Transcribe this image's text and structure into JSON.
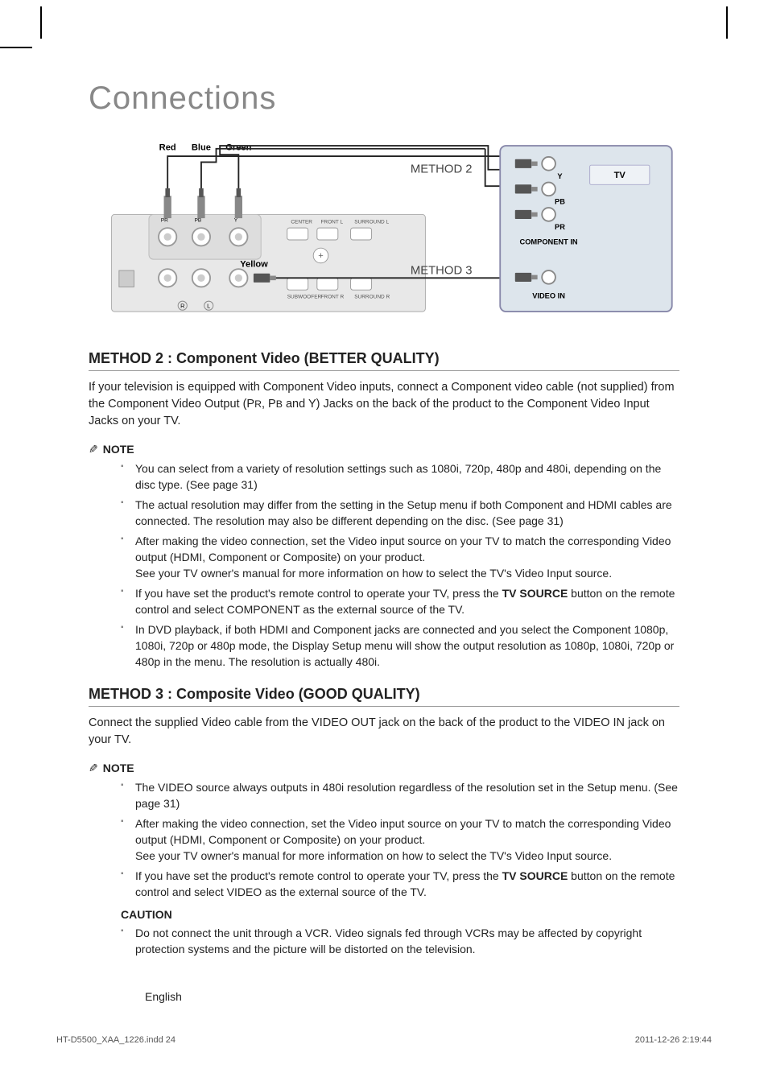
{
  "page": {
    "title": "Connections",
    "language": "English",
    "footer_file": "HT-D5500_XAA_1226.indd  24",
    "footer_timestamp": "2011-12-26   2:19:44"
  },
  "diagram": {
    "cable_labels": {
      "red": "Red",
      "blue": "Blue",
      "green": "Green",
      "yellow": "Yellow"
    },
    "method2_label": "METHOD 2",
    "method3_label": "METHOD 3",
    "tv_label": "TV",
    "tv_ports": {
      "y": "Y",
      "pb": "PB",
      "pr": "PR"
    },
    "component_in": "COMPONENT IN",
    "video_in": "VIDEO IN",
    "rear_labels": {
      "pr": "PR",
      "pb": "PB",
      "y": "Y",
      "center": "CENTER",
      "front_l": "FRONT L",
      "surround_l": "SURROUND L",
      "subwoofer": "SUBWOOFER",
      "front_r": "FRONT R",
      "surround_r": "SURROUND R",
      "r": "R",
      "l": "L"
    },
    "colors": {
      "red": "#d33",
      "blue": "#36c",
      "green": "#3a3",
      "yellow": "#cc3",
      "panel_bg": "#e8e8e8",
      "panel_border": "#aaa",
      "tv_bg": "#dde5ec",
      "tv_border": "#88a",
      "line": "#222"
    }
  },
  "method2": {
    "heading": "METHOD 2 : Component Video (BETTER QUALITY)",
    "body_pre": "If your television is equipped with Component Video inputs, connect a Component video cable (not supplied) from the Component Video Output (P",
    "body_r": "R",
    "body_mid1": ", P",
    "body_b": "B",
    "body_mid2": " and Y) Jacks on the back of the product to the Component Video Input Jacks on your TV.",
    "note_label": "NOTE",
    "notes": [
      "You can select from a variety of resolution settings such as 1080i, 720p, 480p and 480i, depending on the disc type. (See page 31)",
      "The actual resolution may differ from the setting in the Setup menu if both Component and HDMI cables are connected. The resolution may also be different depending on the disc. (See page 31)",
      "After making the video connection, set the Video input source on your TV to match the corresponding Video output (HDMI, Component or Composite) on your product.\nSee your TV owner's manual for more information on how to select the TV's Video Input source.",
      "If you have set the product's remote control to operate your TV, press the |TV SOURCE| button on the remote control and select COMPONENT as the external source of the TV.",
      "In DVD playback, if both HDMI and Component jacks are connected and you select the Component 1080p, 1080i, 720p or 480p mode, the Display Setup menu will show the output resolution as 1080p, 1080i, 720p or 480p in the menu. The resolution is actually 480i."
    ]
  },
  "method3": {
    "heading": "METHOD 3 : Composite Video (GOOD QUALITY)",
    "body": "Connect the supplied Video cable from the VIDEO OUT jack on the back of the product to the VIDEO IN jack on your TV.",
    "note_label": "NOTE",
    "notes": [
      "The VIDEO source always outputs in 480i resolution regardless of the resolution set in the Setup menu. (See page 31)",
      "After making the video connection, set the Video input source on your TV to match the corresponding Video output (HDMI, Component or Composite) on your product.\nSee your TV owner's manual for more information on how to select the TV's Video Input source.",
      "If you have set the product's remote control to operate your TV, press the |TV SOURCE| button on the remote control and select VIDEO as the external source of the TV."
    ],
    "caution_label": "CAUTION",
    "cautions": [
      "Do not connect the unit through a VCR. Video signals fed through VCRs may be affected by copyright protection systems and the picture will be distorted on the television."
    ]
  }
}
